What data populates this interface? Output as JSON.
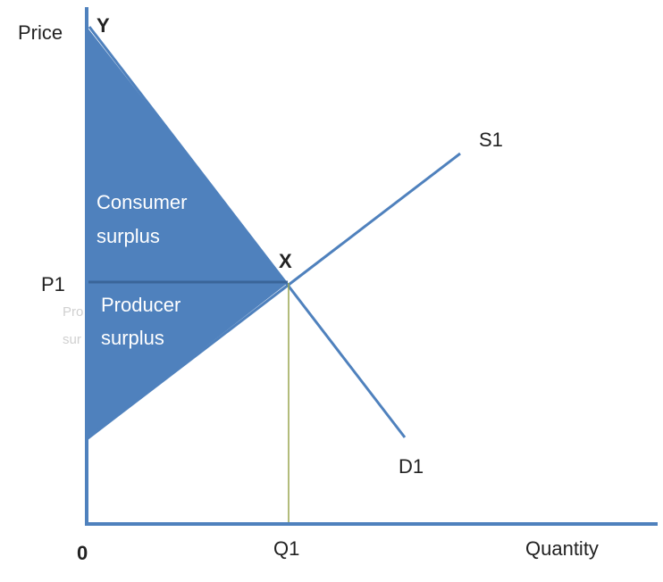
{
  "axes": {
    "y_label": "Price",
    "x_label": "Quantity",
    "origin": "0"
  },
  "points": {
    "y_intercept": "Y",
    "equilibrium": "X"
  },
  "curves": {
    "supply": "S1",
    "demand": "D1"
  },
  "levels": {
    "price": "P1",
    "quantity": "Q1"
  },
  "areas": {
    "consumer": [
      "Consumer",
      "surplus"
    ],
    "producer": [
      "Producer",
      "surplus"
    ],
    "hidden_label": [
      "Pro",
      "sur"
    ]
  }
}
